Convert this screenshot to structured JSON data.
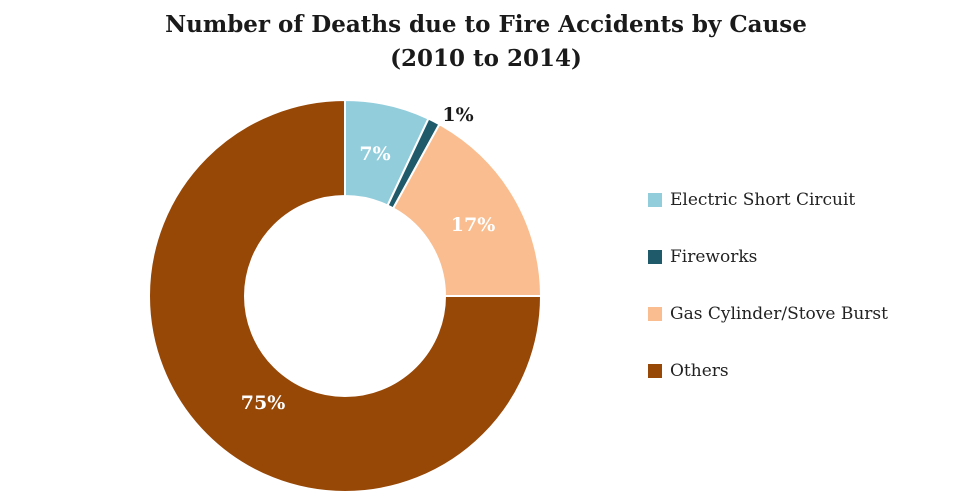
{
  "chart_data": {
    "type": "pie",
    "title": "Number of Deaths due to Fire Accidents by Cause",
    "subtitle": "(2010 to 2014)",
    "categories": [
      "Electric Short Circuit",
      "Fireworks",
      "Gas Cylinder/Stove Burst",
      "Others"
    ],
    "values": [
      7,
      1,
      17,
      75
    ],
    "data_labels": [
      "7%",
      "1%",
      "17%",
      "75%"
    ],
    "colors": [
      "#92cddc",
      "#1f5a6b",
      "#f9bd8f",
      "#974706"
    ],
    "style": "donut",
    "legend": "right"
  }
}
